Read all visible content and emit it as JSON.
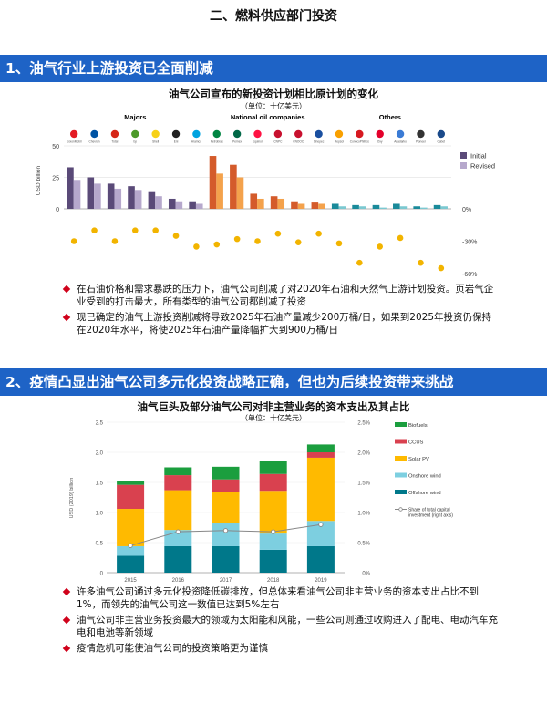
{
  "page_title": "二、燃料供应部门投资",
  "section1": {
    "title": "1、油气行业上游投资已全面削减",
    "chart_title": "油气公司宣布的新投资计划相比原计划的变化",
    "chart_unit": "（单位：十亿美元）",
    "group_labels": [
      "Majors",
      "National oil companies",
      "Others"
    ],
    "logos": [
      "ExxonMobil",
      "Chevron",
      "Total",
      "bp",
      "Shell",
      "Eni",
      "Aramco",
      "Petrobras",
      "Pemex",
      "Equinor",
      "CNPC",
      "CNOOC",
      "Sinopec",
      "Repsol",
      "ConocoPhillips",
      "Oxy",
      "Anadarko",
      "Pioneer",
      "Cabot"
    ],
    "bullets": [
      "在石油价格和需求暴跌的压力下，油气公司削减了对2020年石油和天然气上游计划投资。页岩气企业受到的打击最大，所有类型的油气公司都削减了投资",
      "现已确定的油气上游投资削减将导致2025年石油产量减少200万桶/日，如果到2025年投资仍保持在2020年水平，将使2025年石油产量降幅扩大到900万桶/日"
    ]
  },
  "section2": {
    "title": "2、疫情凸显出油气公司多元化投资战略正确，但也为后续投资带来挑战",
    "chart_title": "油气巨头及部分油气公司对非主营业务的资本支出及其占比",
    "chart_unit": "（单位：十亿美元）",
    "bullets": [
      "许多油气公司通过多元化投资降低碳排放，但总体来看油气公司非主营业务的资本支出占比不到1%，而领先的油气公司这一数值已达到5%左右",
      "油气公司非主营业务投资最大的领域为太阳能和风能，一些公司则通过收购进入了配电、电动汽车充电和电池等新领域",
      "疫情危机可能使油气公司的投资策略更为谨慎"
    ]
  },
  "chart_data": [
    {
      "type": "bar",
      "ylabel": "USD billion",
      "ylim": [
        0,
        50
      ],
      "y_ticks": [
        "0",
        "25",
        "50"
      ],
      "y2_ticks": [
        "0%",
        "-30%",
        "-60%"
      ],
      "y2lim": [
        -0.6,
        0
      ],
      "legend": [
        "Initial",
        "Revised"
      ],
      "legend_position": "right",
      "series": [
        {
          "name": "Initial",
          "color_major": "#5a4a78",
          "color_noc": "#d45b2b",
          "color_other": "#1a8a9a",
          "values": [
            33,
            25,
            20,
            18,
            14,
            8,
            6,
            42,
            35,
            12,
            10,
            6,
            5,
            4,
            3,
            3,
            4,
            2,
            3
          ]
        },
        {
          "name": "Revised",
          "color_major": "#b6a8cc",
          "color_noc": "#f4a24c",
          "color_other": "#7cc9d1",
          "values": [
            23,
            20,
            16,
            15,
            10,
            6,
            4,
            28,
            25,
            8,
            8,
            4,
            4,
            2,
            2,
            1,
            2,
            1,
            2
          ]
        }
      ],
      "percent_change": [
        -0.3,
        -0.2,
        -0.3,
        -0.2,
        -0.2,
        -0.25,
        -0.35,
        -0.33,
        -0.28,
        -0.3,
        -0.23,
        -0.31,
        -0.23,
        -0.32,
        -0.5,
        -0.35,
        -0.27,
        -0.5,
        -0.55
      ],
      "percent_color": "#f2b400"
    },
    {
      "type": "bar",
      "stacked": true,
      "ylabel": "USD (2019) billion",
      "ylim": [
        0,
        2.5
      ],
      "y2lim": [
        0,
        2.5
      ],
      "categories": [
        "2015",
        "2016",
        "2017",
        "2018",
        "2019"
      ],
      "y_ticks": [
        "0",
        "0.5",
        "1.0",
        "1.5",
        "2.0",
        "2.5"
      ],
      "y2_ticks": [
        "0%",
        "0.5%",
        "1.0%",
        "1.5%",
        "2.0%",
        "2.5%"
      ],
      "legend_position": "right",
      "series": [
        {
          "name": "Offshore wind",
          "color": "#00788a",
          "values": [
            0.28,
            0.44,
            0.44,
            0.38,
            0.44
          ]
        },
        {
          "name": "Onshore wind",
          "color": "#7dcfe0",
          "values": [
            0.16,
            0.27,
            0.38,
            0.27,
            0.42
          ]
        },
        {
          "name": "Solar PV",
          "color": "#ffba00",
          "values": [
            0.62,
            0.66,
            0.52,
            0.71,
            1.05
          ]
        },
        {
          "name": "CCUS",
          "color": "#d9414f",
          "values": [
            0.4,
            0.25,
            0.21,
            0.28,
            0.09
          ]
        },
        {
          "name": "Biofuels",
          "color": "#1b9e3e",
          "values": [
            0.06,
            0.13,
            0.21,
            0.22,
            0.13
          ]
        }
      ],
      "line": {
        "name": "Share of total capital investment (right axis)",
        "color": "#888888",
        "values": [
          0.45,
          0.68,
          0.7,
          0.68,
          0.8
        ]
      }
    }
  ]
}
